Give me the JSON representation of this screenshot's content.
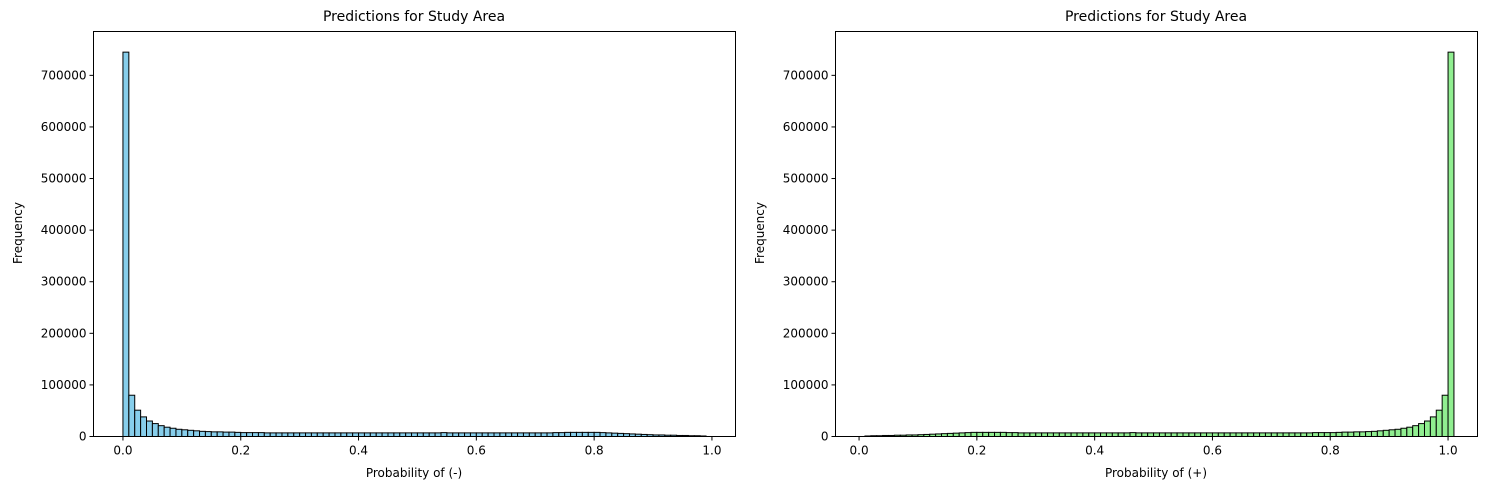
{
  "chart_data": [
    {
      "type": "bar",
      "title": "Predictions for Study Area",
      "xlabel": "Probability of (-)",
      "ylabel": "Frequency",
      "xlim": [
        -0.05,
        1.04
      ],
      "ylim": [
        0,
        785000
      ],
      "xticks": [
        "0.0",
        "0.2",
        "0.4",
        "0.6",
        "0.8",
        "1.0"
      ],
      "yticks": [
        "0",
        "100000",
        "200000",
        "300000",
        "400000",
        "500000",
        "600000",
        "700000"
      ],
      "bar_color": "#87ceeb",
      "edge_color": "#000000",
      "grid": false,
      "bin_width": 0.01,
      "bin_start": 0.0,
      "values": [
        745000,
        80000,
        51000,
        38000,
        30000,
        25000,
        21000,
        18000,
        16000,
        14000,
        13000,
        12000,
        11000,
        10000,
        9500,
        9000,
        9000,
        8500,
        8500,
        8000,
        7500,
        7500,
        7500,
        7500,
        7000,
        7000,
        7000,
        7000,
        7000,
        7000,
        7000,
        7000,
        7000,
        7000,
        7000,
        7000,
        7000,
        7000,
        7000,
        7000,
        7000,
        7000,
        7000,
        7000,
        7000,
        7000,
        7000,
        7000,
        7000,
        7000,
        7000,
        7000,
        7000,
        7000,
        7500,
        7000,
        7000,
        7000,
        7000,
        7000,
        7000,
        7000,
        7000,
        7000,
        7000,
        7000,
        7000,
        7000,
        7000,
        7000,
        7000,
        7000,
        7000,
        7500,
        7500,
        8000,
        8000,
        8000,
        8000,
        8000,
        8000,
        7500,
        7000,
        6500,
        6000,
        5500,
        5000,
        4500,
        4000,
        3500,
        3000,
        3000,
        2500,
        2500,
        2000,
        2000,
        1500,
        1500,
        1000
      ]
    },
    {
      "type": "bar",
      "title": "Predictions for Study Area",
      "xlabel": "Probability of (+)",
      "ylabel": "Frequency",
      "xlim": [
        -0.04,
        1.05
      ],
      "ylim": [
        0,
        785000
      ],
      "xticks": [
        "0.0",
        "0.2",
        "0.4",
        "0.6",
        "0.8",
        "1.0"
      ],
      "yticks": [
        "0",
        "100000",
        "200000",
        "300000",
        "400000",
        "500000",
        "600000",
        "700000"
      ],
      "bar_color": "#90ee90",
      "edge_color": "#000000",
      "grid": false,
      "bin_width": 0.01,
      "bin_start": 0.01,
      "values": [
        1000,
        1500,
        1500,
        2000,
        2000,
        2500,
        2500,
        3000,
        3000,
        3500,
        4000,
        4500,
        5000,
        5500,
        6000,
        6500,
        7000,
        7500,
        8000,
        8000,
        8000,
        8000,
        8000,
        8000,
        7500,
        7500,
        7000,
        7000,
        7000,
        7000,
        7000,
        7000,
        7000,
        7000,
        7000,
        7000,
        7000,
        7000,
        7000,
        7000,
        7000,
        7000,
        7000,
        7000,
        7000,
        7500,
        7000,
        7000,
        7000,
        7000,
        7000,
        7000,
        7000,
        7000,
        7000,
        7000,
        7000,
        7000,
        7000,
        7000,
        7000,
        7000,
        7000,
        7000,
        7000,
        7000,
        7000,
        7000,
        7000,
        7000,
        7000,
        7000,
        7000,
        7000,
        7000,
        7000,
        7500,
        7500,
        7500,
        7500,
        8000,
        8500,
        8500,
        9000,
        9000,
        9500,
        10000,
        11000,
        12000,
        13000,
        14000,
        16000,
        18000,
        21000,
        25000,
        30000,
        38000,
        51000,
        80000,
        745000
      ]
    }
  ]
}
